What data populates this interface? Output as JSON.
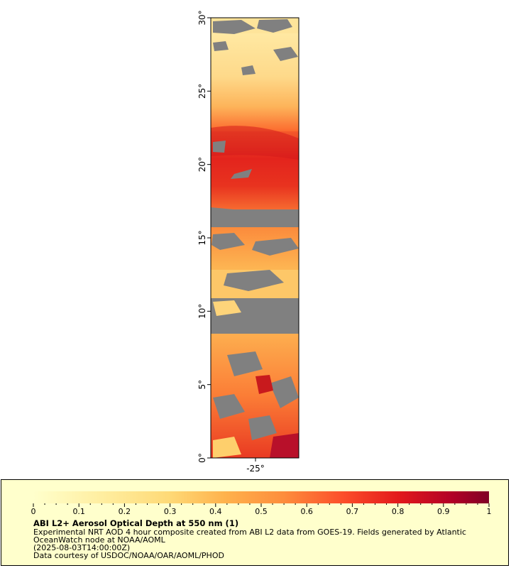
{
  "map": {
    "lat_labels": [
      "0°",
      "5°",
      "10°",
      "15°",
      "20°",
      "25°",
      "30°"
    ],
    "lat_values": [
      0,
      5,
      10,
      15,
      20,
      25,
      30
    ],
    "lon_labels": [
      "-25°"
    ],
    "lon_values": [
      -25
    ],
    "no_data_color": "#808080",
    "missing_color": "#a6b5c8"
  },
  "legend": {
    "ticks": [
      "0",
      "0.1",
      "0.2",
      "0.3",
      "0.4",
      "0.5",
      "0.6",
      "0.7",
      "0.8",
      "0.9",
      "1"
    ],
    "range": [
      0,
      1
    ],
    "colors": [
      "#ffffcc",
      "#fed976",
      "#feb24c",
      "#fd8d3c",
      "#fc4e2a",
      "#e31a1c",
      "#b10026",
      "#800026"
    ]
  },
  "caption": {
    "title": "ABI L2+ Aerosol Optical Depth at 550 nm (1)",
    "description_line1": "Experimental NRT AOD 4 hour composite created from ABI L2 data from GOES-19. Fields generated by Atlantic",
    "description_line2": "OceanWatch node at NOAA/AOML",
    "timestamp": "(2025-08-03T14:00:00Z)",
    "credit": "Data courtesy of USDOC/NOAA/OAR/AOML/PHOD"
  }
}
